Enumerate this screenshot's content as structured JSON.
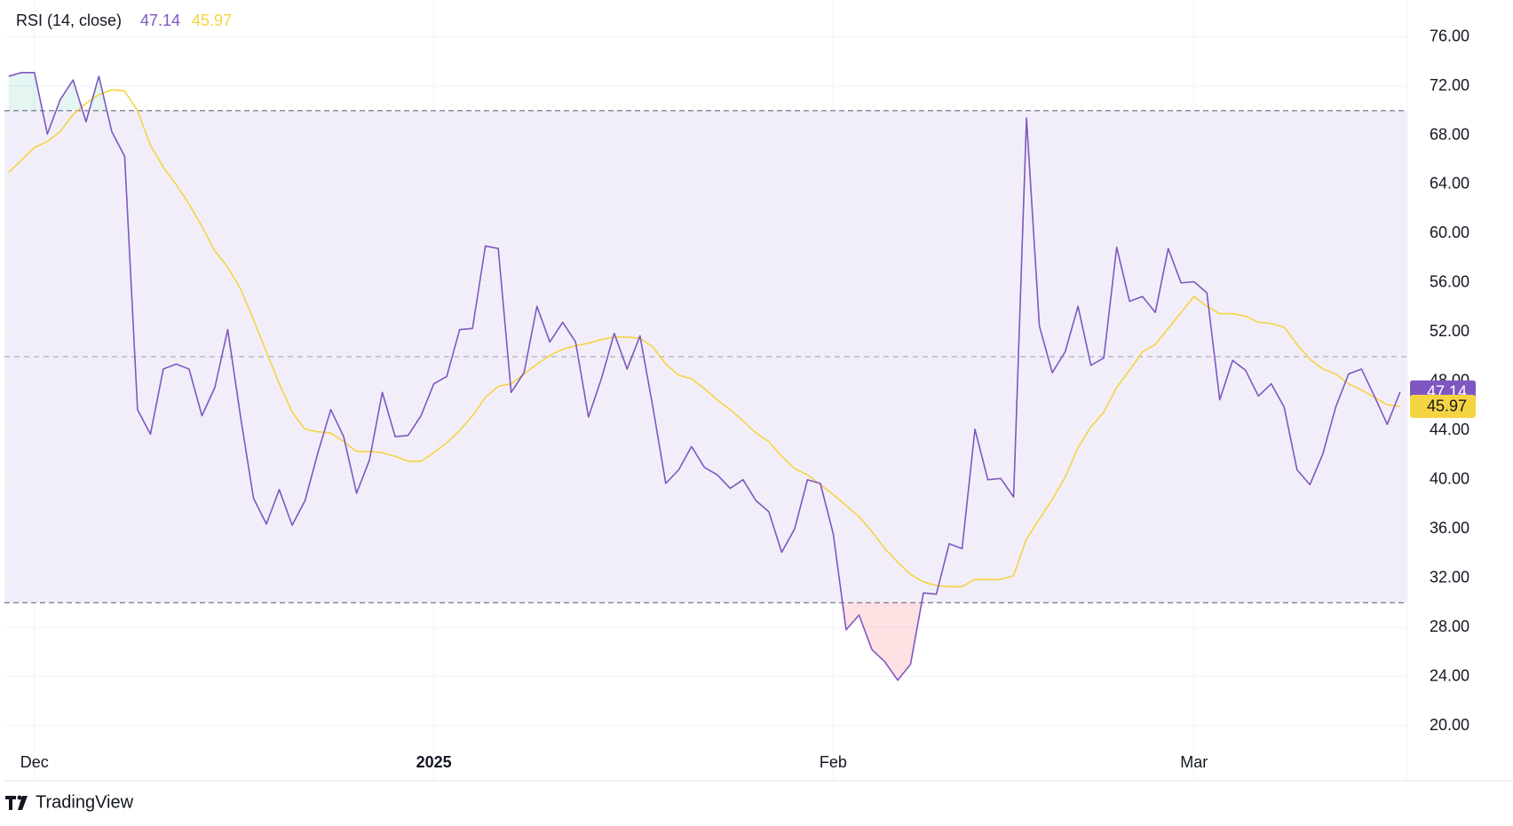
{
  "chart_data": {
    "type": "line",
    "title": "RSI (14, close)",
    "categories": [
      null,
      null,
      "Dec",
      null,
      null,
      null,
      null,
      null,
      null,
      null,
      null,
      null,
      null,
      null,
      null,
      null,
      null,
      null,
      null,
      null,
      null,
      null,
      null,
      null,
      null,
      null,
      null,
      null,
      null,
      null,
      null,
      null,
      null,
      "2025",
      null,
      null,
      null,
      null,
      null,
      null,
      null,
      null,
      null,
      null,
      null,
      null,
      null,
      null,
      null,
      null,
      null,
      null,
      null,
      null,
      null,
      null,
      null,
      null,
      null,
      null,
      null,
      null,
      null,
      null,
      "Feb",
      null,
      null,
      null,
      null,
      null,
      null,
      null,
      null,
      null,
      null,
      null,
      null,
      null,
      null,
      null,
      null,
      null,
      null,
      null,
      null,
      null,
      null,
      null,
      null,
      null,
      null,
      null,
      "Mar",
      null,
      null,
      null,
      null,
      null,
      null,
      null,
      null,
      null,
      null,
      null,
      null,
      null,
      null,
      null,
      null
    ],
    "series": [
      {
        "name": "RSI (14, close)",
        "color": "#7e57c2",
        "values": [
          72.8,
          73.1,
          73.1,
          68.1,
          70.9,
          72.5,
          69.1,
          72.8,
          68.3,
          66.3,
          45.7,
          43.7,
          49.0,
          49.4,
          49.0,
          45.2,
          47.5,
          52.2,
          45.1,
          38.5,
          36.4,
          39.2,
          36.3,
          38.3,
          42.2,
          45.7,
          43.5,
          38.9,
          41.6,
          47.1,
          43.5,
          43.6,
          45.2,
          47.8,
          48.4,
          52.2,
          52.3,
          59.0,
          58.8,
          47.1,
          48.7,
          54.1,
          51.2,
          52.8,
          51.2,
          45.1,
          48.2,
          51.9,
          49.0,
          51.7,
          45.9,
          39.7,
          40.8,
          42.7,
          41.0,
          40.4,
          39.3,
          40.0,
          38.3,
          37.4,
          34.1,
          36.0,
          40.0,
          39.7,
          35.6,
          27.8,
          29.0,
          26.2,
          25.2,
          23.7,
          25.0,
          30.8,
          30.7,
          34.8,
          34.4,
          44.1,
          40.0,
          40.1,
          38.6,
          69.4,
          52.5,
          48.7,
          50.4,
          54.1,
          49.3,
          49.9,
          58.9,
          54.5,
          54.9,
          53.6,
          58.8,
          56.0,
          56.1,
          55.2,
          46.5,
          49.7,
          48.9,
          46.8,
          47.8,
          45.9,
          40.8,
          39.6,
          42.1,
          45.9,
          48.6,
          49.0,
          46.8,
          44.5,
          47.14
        ]
      },
      {
        "color": "#f5d442",
        "values": [
          65.0,
          66.0,
          67.0,
          67.5,
          68.3,
          69.7,
          70.6,
          71.3,
          71.7,
          71.6,
          70.0,
          67.2,
          65.4,
          64.0,
          62.4,
          60.6,
          58.6,
          57.3,
          55.5,
          53.0,
          50.4,
          47.8,
          45.5,
          44.1,
          43.9,
          43.8,
          43.1,
          42.3,
          42.3,
          42.2,
          41.9,
          41.5,
          41.5,
          42.2,
          43.0,
          44.0,
          45.2,
          46.7,
          47.6,
          47.8,
          48.6,
          49.4,
          50.1,
          50.6,
          50.9,
          51.1,
          51.4,
          51.6,
          51.6,
          51.5,
          50.8,
          49.4,
          48.5,
          48.2,
          47.4,
          46.5,
          45.7,
          44.8,
          43.8,
          43.1,
          41.9,
          40.9,
          40.4,
          39.6,
          38.8,
          37.9,
          37.0,
          35.8,
          34.4,
          33.3,
          32.3,
          31.7,
          31.4,
          31.3,
          31.3,
          31.9,
          31.9,
          31.9,
          32.2,
          35.2,
          36.8,
          38.4,
          40.2,
          42.6,
          44.3,
          45.5,
          47.5,
          48.9,
          50.4,
          51.0,
          52.3,
          53.6,
          54.9,
          54.1,
          53.5,
          53.5,
          53.3,
          52.8,
          52.7,
          52.4,
          51.0,
          49.8,
          49.0,
          48.6,
          47.8,
          47.3,
          46.7,
          46.1,
          45.97
        ]
      }
    ],
    "ylim": [
      18.27,
      79.0
    ],
    "yticks": [
      {
        "value": 20,
        "label": "20.00"
      },
      {
        "value": 24,
        "label": "24.00"
      },
      {
        "value": 28,
        "label": "28.00"
      },
      {
        "value": 32,
        "label": "32.00"
      },
      {
        "value": 36,
        "label": "36.00"
      },
      {
        "value": 40,
        "label": "40.00"
      },
      {
        "value": 44,
        "label": "44.00"
      },
      {
        "value": 48,
        "label": "48.00"
      },
      {
        "value": 52,
        "label": "52.00"
      },
      {
        "value": 56,
        "label": "56.00"
      },
      {
        "value": 60,
        "label": "60.00"
      },
      {
        "value": 64,
        "label": "64.00"
      },
      {
        "value": 68,
        "label": "68.00"
      },
      {
        "value": 72,
        "label": "72.00"
      },
      {
        "value": 76,
        "label": "76.00"
      }
    ],
    "bands": {
      "upper": 70,
      "middle": 50,
      "lower": 30
    },
    "band_color": "#7e57c2",
    "grid": true
  },
  "branding": "TradingView"
}
